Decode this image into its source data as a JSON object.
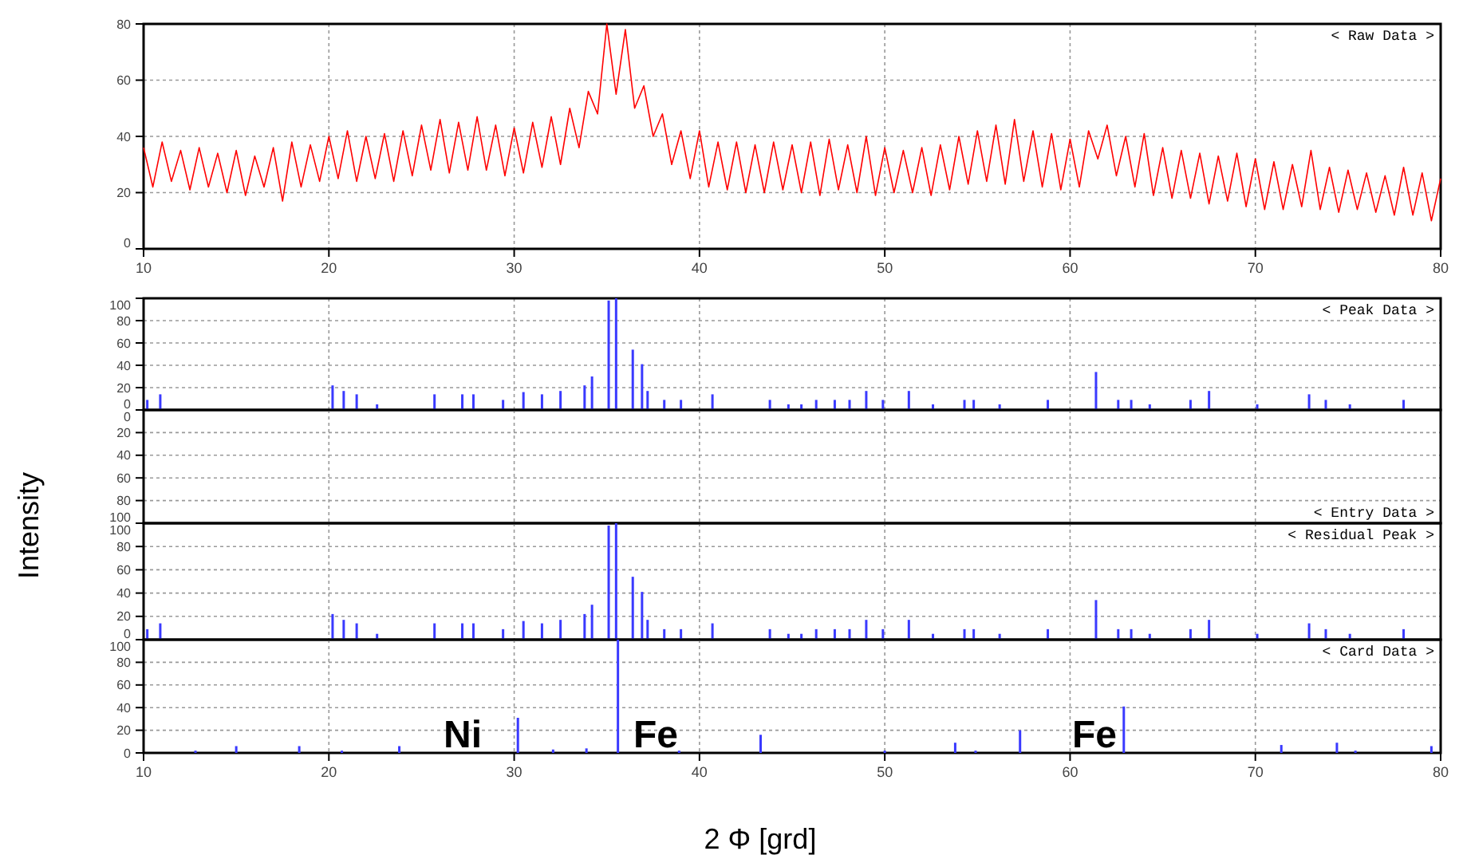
{
  "chart_data": [
    {
      "type": "line",
      "title": "< Raw Data >",
      "xlim": [
        10,
        80
      ],
      "xticks": [
        10,
        20,
        30,
        40,
        50,
        60,
        70,
        80
      ],
      "ylim": [
        0,
        80
      ],
      "yticks": [
        0,
        20,
        40,
        60,
        80
      ],
      "grid": true,
      "line_style": "solid",
      "series": [
        {
          "color": "#ff0000",
          "x": [
            10,
            10.5,
            11,
            11.5,
            12,
            12.5,
            13,
            13.5,
            14,
            14.5,
            15,
            15.5,
            16,
            16.5,
            17,
            17.5,
            18,
            18.5,
            19,
            19.5,
            20,
            20.5,
            21,
            21.5,
            22,
            22.5,
            23,
            23.5,
            24,
            24.5,
            25,
            25.5,
            26,
            26.5,
            27,
            27.5,
            28,
            28.5,
            29,
            29.5,
            30,
            30.5,
            31,
            31.5,
            32,
            32.5,
            33,
            33.5,
            34,
            34.5,
            35,
            35.5,
            36,
            36.5,
            37,
            37.5,
            38,
            38.5,
            39,
            39.5,
            40,
            40.5,
            41,
            41.5,
            42,
            42.5,
            43,
            43.5,
            44,
            44.5,
            45,
            45.5,
            46,
            46.5,
            47,
            47.5,
            48,
            48.5,
            49,
            49.5,
            50,
            50.5,
            51,
            51.5,
            52,
            52.5,
            53,
            53.5,
            54,
            54.5,
            55,
            55.5,
            56,
            56.5,
            57,
            57.5,
            58,
            58.5,
            59,
            59.5,
            60,
            60.5,
            61,
            61.5,
            62,
            62.5,
            63,
            63.5,
            64,
            64.5,
            65,
            65.5,
            66,
            66.5,
            67,
            67.5,
            68,
            68.5,
            69,
            69.5,
            70,
            70.5,
            71,
            71.5,
            72,
            72.5,
            73,
            73.5,
            74,
            74.5,
            75,
            75.5,
            76,
            76.5,
            77,
            77.5,
            78,
            78.5,
            79,
            79.5,
            80
          ],
          "values": [
            36,
            22,
            38,
            24,
            35,
            21,
            36,
            22,
            34,
            20,
            35,
            19,
            33,
            22,
            36,
            17,
            38,
            22,
            37,
            24,
            40,
            25,
            42,
            24,
            40,
            25,
            41,
            24,
            42,
            26,
            44,
            28,
            46,
            27,
            45,
            28,
            47,
            28,
            44,
            26,
            43,
            27,
            45,
            29,
            47,
            30,
            50,
            36,
            56,
            48,
            80,
            55,
            78,
            50,
            58,
            40,
            48,
            30,
            42,
            25,
            42,
            22,
            38,
            21,
            38,
            20,
            37,
            20,
            38,
            21,
            37,
            20,
            38,
            19,
            39,
            21,
            37,
            20,
            40,
            19,
            36,
            20,
            35,
            20,
            36,
            19,
            37,
            21,
            40,
            23,
            42,
            24,
            44,
            23,
            46,
            24,
            42,
            22,
            41,
            21,
            39,
            22,
            42,
            32,
            44,
            26,
            40,
            22,
            41,
            19,
            36,
            18,
            35,
            18,
            34,
            16,
            33,
            17,
            34,
            15,
            32,
            14,
            31,
            14,
            30,
            15,
            35,
            14,
            29,
            13,
            28,
            14,
            27,
            13,
            26,
            12,
            29,
            12,
            27,
            10,
            25
          ]
        }
      ]
    },
    {
      "type": "bar",
      "title": "< Peak Data >",
      "tick_labels": "y",
      "xlim": [
        10,
        80
      ],
      "xticks": [
        10,
        20,
        30,
        40,
        50,
        60,
        70,
        80
      ],
      "ylim": [
        0,
        100
      ],
      "yticks": [
        0,
        20,
        40,
        60,
        80,
        100
      ],
      "grid": true,
      "x": [
        10.2,
        10.9,
        20.2,
        20.8,
        21.5,
        22.6,
        25.7,
        27.2,
        27.8,
        29.4,
        30.5,
        31.5,
        32.5,
        33.8,
        34.2,
        35.1,
        35.5,
        36.4,
        36.9,
        37.2,
        38.1,
        39.0,
        40.7,
        43.8,
        44.8,
        45.5,
        46.3,
        47.3,
        48.1,
        49.0,
        49.9,
        51.3,
        52.6,
        54.3,
        54.8,
        56.2,
        58.8,
        61.4,
        62.6,
        63.3,
        64.3,
        66.5,
        67.5,
        70.1,
        72.9,
        73.8,
        75.1,
        78.0
      ],
      "values": [
        9,
        14,
        22,
        17,
        14,
        5,
        14,
        14,
        14,
        9,
        16,
        14,
        17,
        22,
        30,
        98,
        100,
        54,
        41,
        17,
        9,
        9,
        14,
        9,
        5,
        5,
        9,
        9,
        9,
        17,
        9,
        17,
        5,
        9,
        9,
        5,
        9,
        34,
        9,
        9,
        5,
        9,
        17,
        5,
        14,
        9,
        5,
        9
      ],
      "color": "#3a3aff"
    },
    {
      "type": "bar",
      "title": "< Entry Data >",
      "ylabel": "Intensity",
      "tick_labels": "y",
      "xlim": [
        10,
        80
      ],
      "xticks": [
        10,
        20,
        30,
        40,
        50,
        60,
        70,
        80
      ],
      "ylim": [
        100,
        0
      ],
      "yticks": [
        0,
        20,
        40,
        60,
        80,
        100
      ],
      "grid": true
    },
    {
      "type": "bar",
      "title": "< Residual Peak >",
      "tick_labels": "y",
      "xlim": [
        10,
        80
      ],
      "xticks": [
        10,
        20,
        30,
        40,
        50,
        60,
        70,
        80
      ],
      "ylim": [
        0,
        100
      ],
      "yticks": [
        0,
        20,
        40,
        60,
        80,
        100
      ],
      "grid": true,
      "x": [
        10.2,
        10.9,
        20.2,
        20.8,
        21.5,
        22.6,
        25.7,
        27.2,
        27.8,
        29.4,
        30.5,
        31.5,
        32.5,
        33.8,
        34.2,
        35.1,
        35.5,
        36.4,
        36.9,
        37.2,
        38.1,
        39.0,
        40.7,
        43.8,
        44.8,
        45.5,
        46.3,
        47.3,
        48.1,
        49.0,
        49.9,
        51.3,
        52.6,
        54.3,
        54.8,
        56.2,
        58.8,
        61.4,
        62.6,
        63.3,
        64.3,
        66.5,
        67.5,
        70.1,
        72.9,
        73.8,
        75.1,
        78.0
      ],
      "values": [
        9,
        14,
        22,
        17,
        14,
        5,
        14,
        14,
        14,
        9,
        16,
        14,
        17,
        22,
        30,
        98,
        100,
        54,
        41,
        17,
        9,
        9,
        14,
        9,
        5,
        5,
        9,
        9,
        9,
        17,
        9,
        17,
        5,
        9,
        9,
        5,
        9,
        34,
        9,
        9,
        5,
        9,
        17,
        5,
        14,
        9,
        5,
        9
      ],
      "color": "#3a3aff"
    },
    {
      "type": "bar",
      "title": "< Card Data >",
      "xlabel": "2 Φ [grd]",
      "xlim": [
        10,
        80
      ],
      "xticks": [
        10,
        20,
        30,
        40,
        50,
        60,
        70,
        80
      ],
      "ylim": [
        0,
        100
      ],
      "yticks": [
        0,
        20,
        40,
        60,
        80,
        100
      ],
      "grid": true,
      "x": [
        12.8,
        15.0,
        18.4,
        20.7,
        23.8,
        30.2,
        32.1,
        33.9,
        35.6,
        38.9,
        43.3,
        50.0,
        53.8,
        54.9,
        57.3,
        62.9,
        71.4,
        74.4,
        75.4,
        79.5
      ],
      "values": [
        2,
        6,
        6,
        2,
        6,
        31,
        3,
        4,
        100,
        2,
        16,
        2,
        9,
        2,
        20,
        41,
        7,
        9,
        2,
        6
      ],
      "color": "#3a3aff",
      "annotations": [
        "Ni",
        "Fe",
        "Fe"
      ]
    }
  ]
}
